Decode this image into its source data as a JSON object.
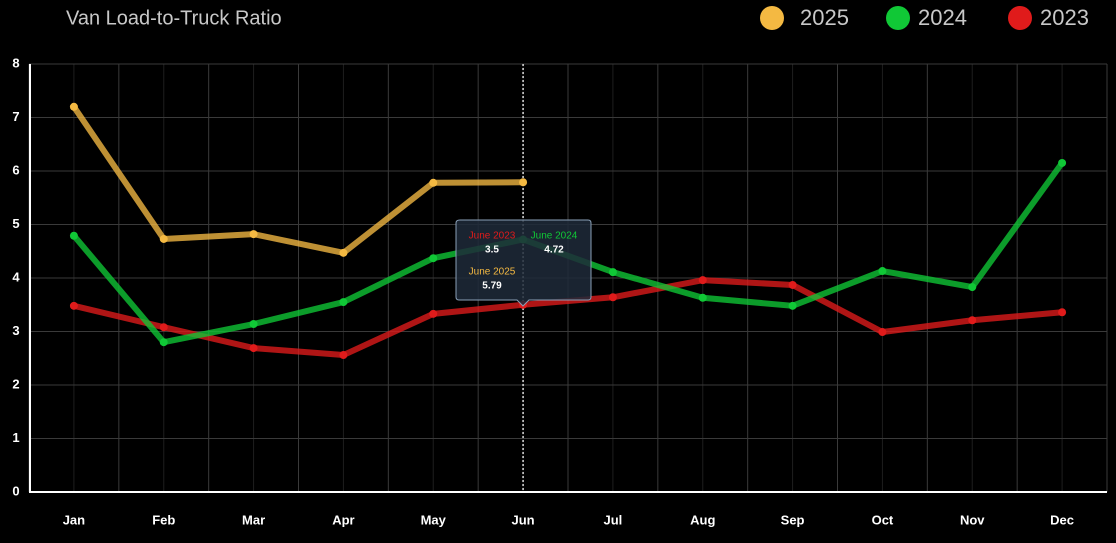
{
  "chart_data": {
    "type": "line",
    "title": "Van Load-to-Truck Ratio",
    "categories": [
      "Jan",
      "Feb",
      "Mar",
      "Apr",
      "May",
      "Jun",
      "Jul",
      "Aug",
      "Sep",
      "Oct",
      "Nov",
      "Dec"
    ],
    "series": [
      {
        "name": "2025",
        "color": "#f4b942",
        "values": [
          7.2,
          4.73,
          4.82,
          4.47,
          5.78,
          5.79,
          null,
          null,
          null,
          null,
          null,
          null
        ]
      },
      {
        "name": "2024",
        "color": "#10c836",
        "values": [
          4.79,
          2.8,
          3.14,
          3.55,
          4.37,
          4.72,
          4.11,
          3.63,
          3.48,
          4.13,
          3.83,
          6.15
        ]
      },
      {
        "name": "2023",
        "color": "#e01b1b",
        "values": [
          3.48,
          3.08,
          2.69,
          2.56,
          3.33,
          3.5,
          3.64,
          3.96,
          3.87,
          2.99,
          3.21,
          3.36
        ]
      }
    ],
    "ylim": [
      0,
      8
    ],
    "yticks": [
      0,
      1,
      2,
      3,
      4,
      5,
      6,
      7,
      8
    ],
    "grid": true,
    "tooltip": {
      "labels": [
        "June 2025",
        "June 2024",
        "June 2023"
      ]
    }
  }
}
